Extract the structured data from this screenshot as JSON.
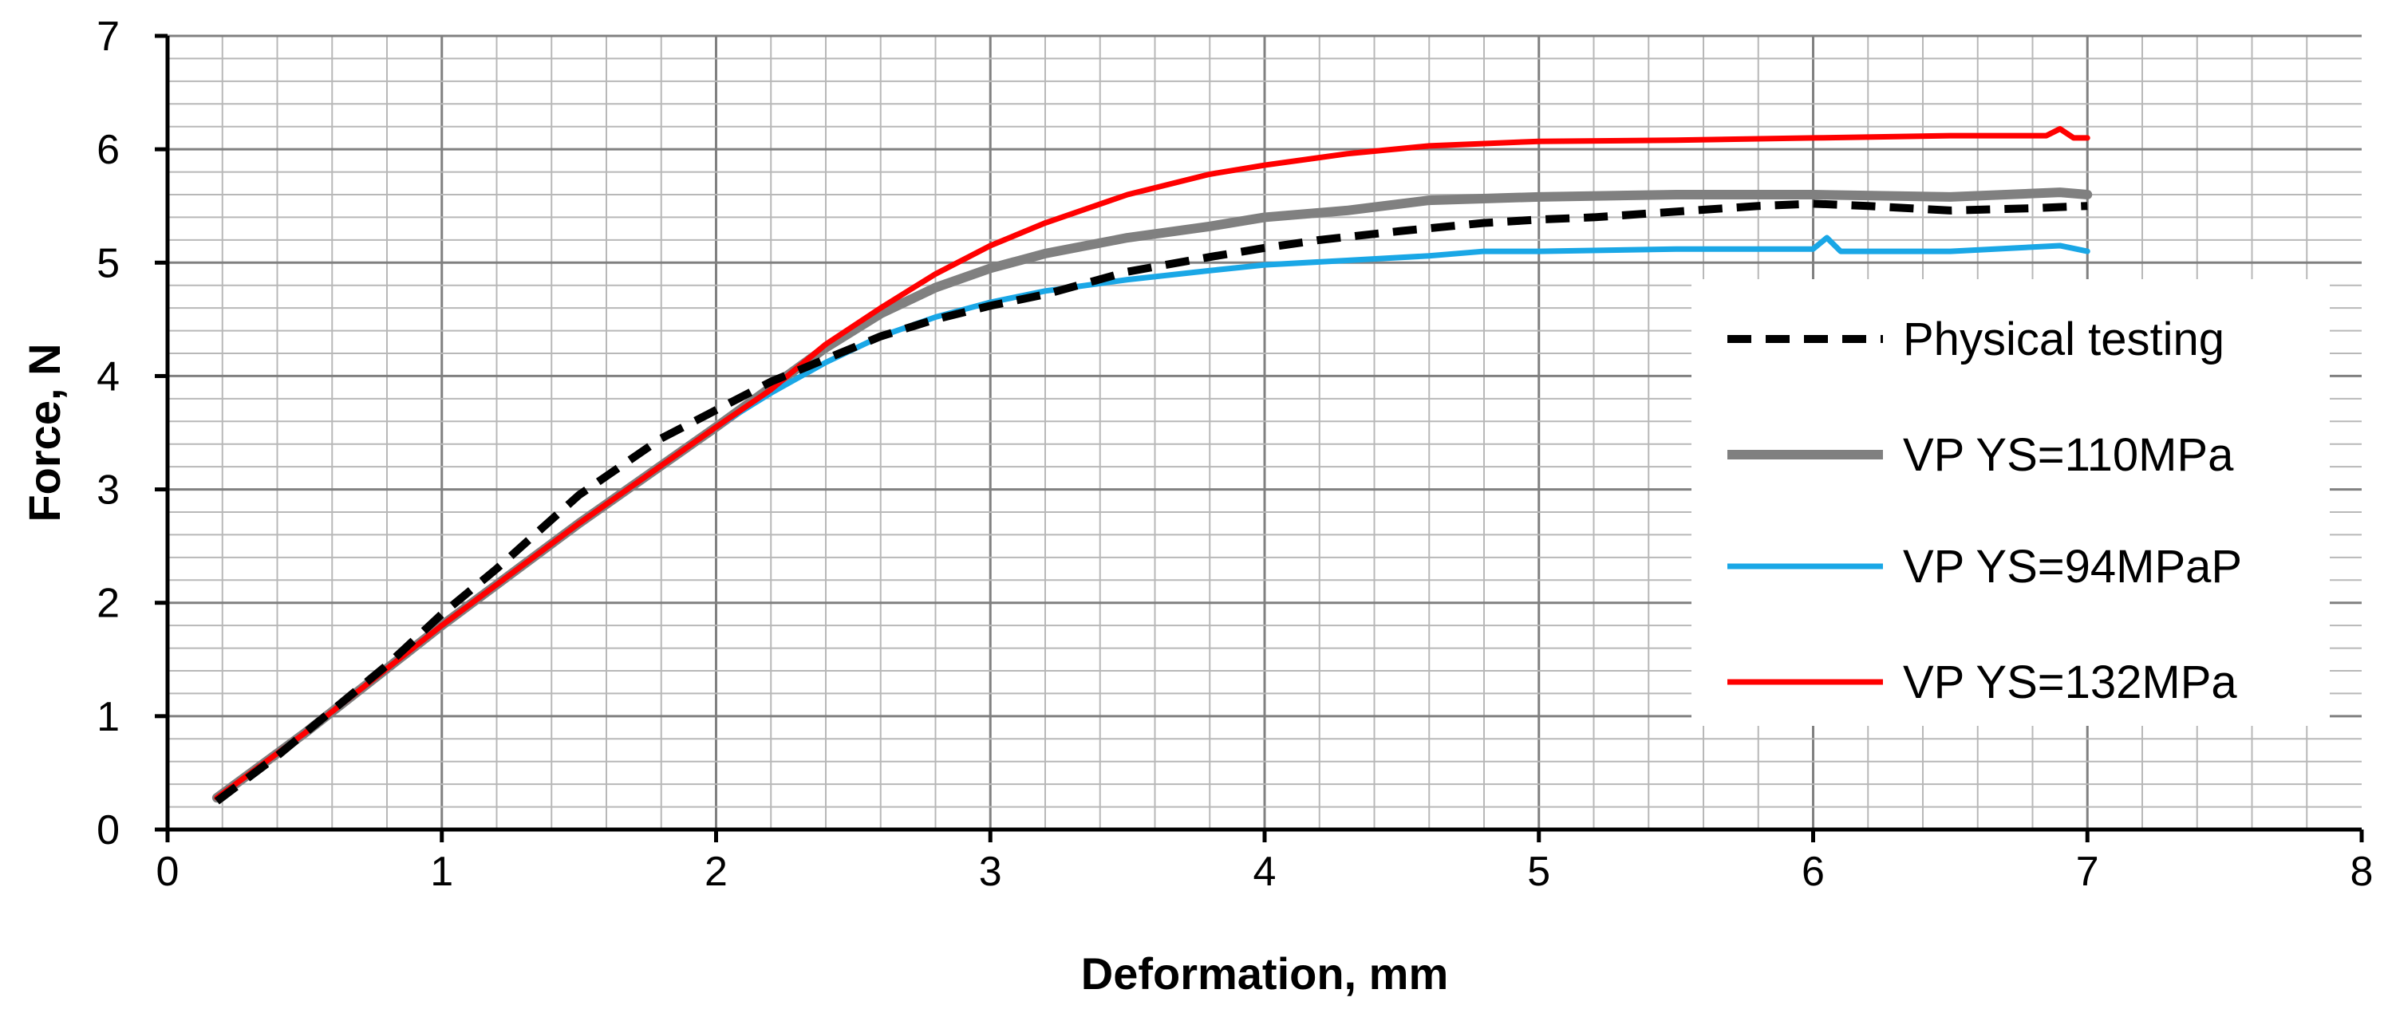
{
  "chart_data": {
    "type": "line",
    "title": "",
    "xlabel": "Deformation, mm",
    "ylabel": "Force, N",
    "xlim": [
      0,
      8
    ],
    "ylim": [
      0,
      7
    ],
    "xticks": [
      0,
      1,
      2,
      3,
      4,
      5,
      6,
      7,
      8
    ],
    "yticks": [
      0,
      1,
      2,
      3,
      4,
      5,
      6,
      7
    ],
    "minor_grid_x_step": 0.2,
    "minor_grid_y_step": 0.2,
    "grid": true,
    "legend_position": "right",
    "series": [
      {
        "name": "Physical testing",
        "color": "#000000",
        "style": "dashed",
        "x": [
          0.18,
          0.4,
          0.6,
          0.8,
          1.0,
          1.2,
          1.5,
          1.8,
          2.0,
          2.2,
          2.4,
          2.6,
          2.8,
          3.0,
          3.2,
          3.5,
          3.8,
          4.0,
          4.2,
          4.5,
          4.8,
          5.0,
          5.2,
          5.5,
          5.8,
          6.0,
          6.2,
          6.5,
          6.8,
          7.0
        ],
        "y": [
          0.25,
          0.65,
          1.05,
          1.45,
          1.9,
          2.3,
          2.95,
          3.45,
          3.7,
          3.95,
          4.15,
          4.35,
          4.5,
          4.62,
          4.72,
          4.92,
          5.05,
          5.13,
          5.2,
          5.28,
          5.35,
          5.38,
          5.4,
          5.45,
          5.5,
          5.52,
          5.5,
          5.46,
          5.48,
          5.5
        ]
      },
      {
        "name": "VP YS=110MPa",
        "color": "#808080",
        "style": "solid",
        "x": [
          0.18,
          0.5,
          1.0,
          1.5,
          2.0,
          2.2,
          2.4,
          2.6,
          2.8,
          3.0,
          3.2,
          3.5,
          3.8,
          4.0,
          4.3,
          4.6,
          5.0,
          5.5,
          6.0,
          6.5,
          6.9,
          7.0
        ],
        "y": [
          0.28,
          0.85,
          1.8,
          2.7,
          3.55,
          3.9,
          4.25,
          4.55,
          4.78,
          4.95,
          5.08,
          5.22,
          5.32,
          5.4,
          5.46,
          5.55,
          5.58,
          5.6,
          5.6,
          5.58,
          5.62,
          5.6
        ]
      },
      {
        "name": "VP YS=94MPaP",
        "color": "#1aa7e6",
        "style": "solid",
        "x": [
          0.18,
          0.5,
          1.0,
          1.5,
          2.0,
          2.2,
          2.4,
          2.6,
          2.8,
          3.0,
          3.2,
          3.5,
          3.8,
          4.0,
          4.3,
          4.6,
          4.8,
          5.0,
          5.5,
          6.0,
          6.05,
          6.1,
          6.5,
          6.9,
          7.0
        ],
        "y": [
          0.28,
          0.85,
          1.8,
          2.7,
          3.55,
          3.85,
          4.12,
          4.35,
          4.52,
          4.65,
          4.75,
          4.85,
          4.93,
          4.98,
          5.02,
          5.06,
          5.1,
          5.1,
          5.12,
          5.12,
          5.22,
          5.1,
          5.1,
          5.15,
          5.1
        ]
      },
      {
        "name": "VP YS=132MPa",
        "color": "#ff0000",
        "style": "solid",
        "x": [
          0.18,
          0.5,
          1.0,
          1.5,
          2.0,
          2.2,
          2.4,
          2.6,
          2.8,
          3.0,
          3.2,
          3.5,
          3.8,
          4.0,
          4.3,
          4.6,
          5.0,
          5.5,
          6.0,
          6.5,
          6.85,
          6.9,
          6.95,
          7.0
        ],
        "y": [
          0.28,
          0.85,
          1.8,
          2.7,
          3.55,
          3.88,
          4.28,
          4.6,
          4.9,
          5.15,
          5.35,
          5.6,
          5.78,
          5.86,
          5.96,
          6.03,
          6.07,
          6.08,
          6.1,
          6.12,
          6.12,
          6.18,
          6.1,
          6.1
        ]
      }
    ]
  }
}
